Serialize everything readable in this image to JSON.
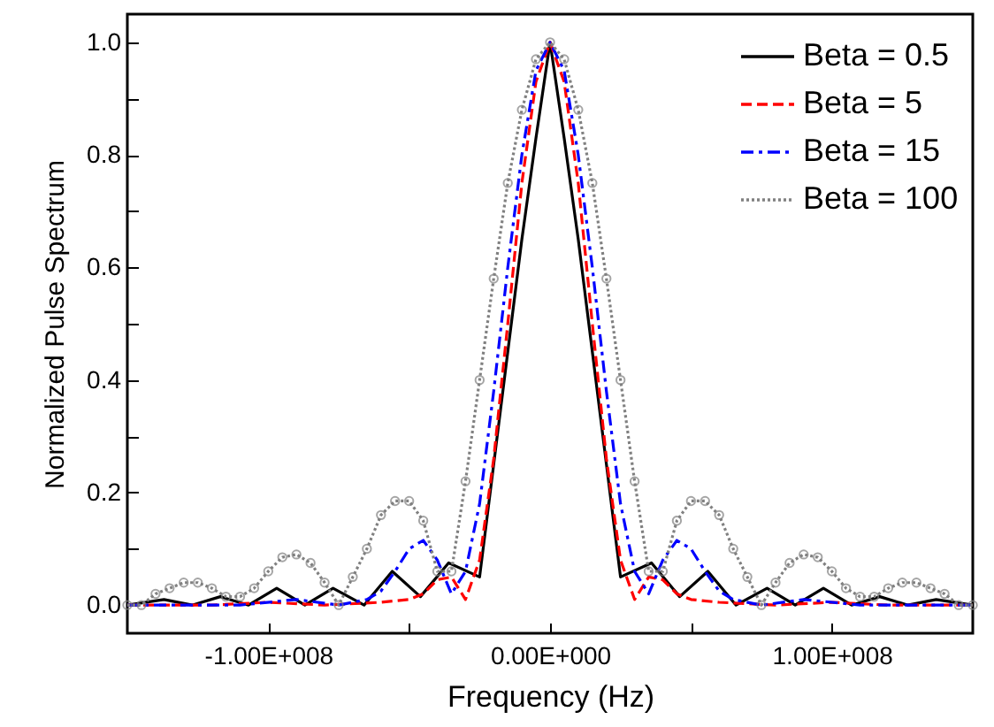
{
  "chart_data": {
    "type": "line",
    "xlabel": "Frequency (Hz)",
    "ylabel": "Normalized Pulse Spectrum",
    "xlim": [
      -150000000.0,
      150000000.0
    ],
    "ylim": [
      -0.05,
      1.05
    ],
    "xticks": [
      {
        "value": -100000000.0,
        "label": "-1.00E+008"
      },
      {
        "value": -50000000.0,
        "label": null
      },
      {
        "value": 0,
        "label": "0.00E+000"
      },
      {
        "value": 50000000.0,
        "label": null
      },
      {
        "value": 100000000.0,
        "label": "1.00E+008"
      }
    ],
    "yticks": [
      {
        "value": 0,
        "label": "0.0"
      },
      {
        "value": 0.1,
        "label": null
      },
      {
        "value": 0.2,
        "label": "0.2"
      },
      {
        "value": 0.3,
        "label": null
      },
      {
        "value": 0.4,
        "label": "0.4"
      },
      {
        "value": 0.5,
        "label": null
      },
      {
        "value": 0.6,
        "label": "0.6"
      },
      {
        "value": 0.7,
        "label": null
      },
      {
        "value": 0.8,
        "label": "0.8"
      },
      {
        "value": 0.9,
        "label": null
      },
      {
        "value": 1.0,
        "label": "1.0"
      }
    ],
    "grid": false,
    "legend": "top right",
    "series": [
      {
        "name": "Beta = 0.5",
        "color": "#000000",
        "line_style": "solid",
        "marker": "none",
        "x": [
          -150000000.0,
          -137000000.0,
          -127000000.0,
          -117000000.0,
          -107000000.0,
          -97000000.0,
          -87000000.0,
          -77000000.0,
          -66000000.0,
          -56000000.0,
          -46000000.0,
          -36000000.0,
          -25000000.0,
          -20000000.0,
          -15000000.0,
          -10000000.0,
          -5000000.0,
          0,
          5000000.0,
          10000000.0,
          15000000.0,
          20000000.0,
          25000000.0,
          36000000.0,
          46000000.0,
          56000000.0,
          66000000.0,
          77000000.0,
          87000000.0,
          97000000.0,
          107000000.0,
          117000000.0,
          127000000.0,
          137000000.0,
          150000000.0
        ],
        "values": [
          0,
          0.01,
          0,
          0.015,
          0,
          0.03,
          0,
          0.03,
          0,
          0.06,
          0.015,
          0.075,
          0.05,
          0.25,
          0.45,
          0.65,
          0.83,
          1.0,
          0.83,
          0.65,
          0.45,
          0.25,
          0.05,
          0.075,
          0.015,
          0.06,
          0,
          0.03,
          0,
          0.03,
          0,
          0.015,
          0,
          0.01,
          0
        ]
      },
      {
        "name": "Beta = 5",
        "color": "#ff0000",
        "line_style": "dashed",
        "marker": "none",
        "x": [
          -150000000.0,
          -120000000.0,
          -100000000.0,
          -80000000.0,
          -60000000.0,
          -50000000.0,
          -45000000.0,
          -40000000.0,
          -35000000.0,
          -30000000.0,
          -25000000.0,
          -20000000.0,
          -15000000.0,
          -10000000.0,
          -5000000.0,
          0,
          5000000.0,
          10000000.0,
          15000000.0,
          20000000.0,
          25000000.0,
          30000000.0,
          35000000.0,
          40000000.0,
          45000000.0,
          50000000.0,
          60000000.0,
          80000000.0,
          100000000.0,
          120000000.0,
          150000000.0
        ],
        "values": [
          0,
          0,
          0.005,
          0,
          0.005,
          0.01,
          0.02,
          0.045,
          0.05,
          0.01,
          0.08,
          0.26,
          0.5,
          0.75,
          0.93,
          1.0,
          0.93,
          0.75,
          0.5,
          0.26,
          0.08,
          0.01,
          0.05,
          0.045,
          0.02,
          0.01,
          0.005,
          0,
          0.005,
          0,
          0
        ]
      },
      {
        "name": "Beta = 15",
        "color": "#0000ff",
        "line_style": "dashdot",
        "marker": "none",
        "x": [
          -150000000.0,
          -110000000.0,
          -90000000.0,
          -75000000.0,
          -65000000.0,
          -60000000.0,
          -55000000.0,
          -50000000.0,
          -45000000.0,
          -40000000.0,
          -35000000.0,
          -30000000.0,
          -25000000.0,
          -20000000.0,
          -15000000.0,
          -10000000.0,
          -5000000.0,
          0,
          5000000.0,
          10000000.0,
          15000000.0,
          20000000.0,
          25000000.0,
          30000000.0,
          35000000.0,
          40000000.0,
          45000000.0,
          50000000.0,
          55000000.0,
          60000000.0,
          65000000.0,
          75000000.0,
          90000000.0,
          110000000.0,
          150000000.0
        ],
        "values": [
          0,
          0,
          0.01,
          0,
          0.01,
          0.025,
          0.06,
          0.1,
          0.115,
          0.08,
          0.02,
          0.06,
          0.18,
          0.38,
          0.6,
          0.8,
          0.95,
          1.0,
          0.95,
          0.8,
          0.6,
          0.38,
          0.18,
          0.06,
          0.02,
          0.08,
          0.115,
          0.1,
          0.06,
          0.025,
          0.01,
          0,
          0.01,
          0,
          0
        ]
      },
      {
        "name": "Beta = 100",
        "color": "#808080",
        "line_style": "dotted",
        "marker": "circle",
        "x": [
          -150000000.0,
          -145000000.0,
          -140000000.0,
          -135000000.0,
          -130000000.0,
          -125000000.0,
          -120000000.0,
          -115000000.0,
          -110000000.0,
          -105000000.0,
          -100000000.0,
          -95000000.0,
          -90000000.0,
          -85000000.0,
          -80000000.0,
          -75000000.0,
          -70000000.0,
          -65000000.0,
          -60000000.0,
          -55000000.0,
          -50000000.0,
          -45000000.0,
          -40000000.0,
          -35000000.0,
          -30000000.0,
          -25000000.0,
          -20000000.0,
          -15000000.0,
          -10000000.0,
          -5000000.0,
          0,
          5000000.0,
          10000000.0,
          15000000.0,
          20000000.0,
          25000000.0,
          30000000.0,
          35000000.0,
          40000000.0,
          45000000.0,
          50000000.0,
          55000000.0,
          60000000.0,
          65000000.0,
          70000000.0,
          75000000.0,
          80000000.0,
          85000000.0,
          90000000.0,
          95000000.0,
          100000000.0,
          105000000.0,
          110000000.0,
          115000000.0,
          120000000.0,
          125000000.0,
          130000000.0,
          135000000.0,
          140000000.0,
          145000000.0,
          150000000.0
        ],
        "values": [
          0.0,
          0.0,
          0.02,
          0.03,
          0.04,
          0.04,
          0.03,
          0.015,
          0.015,
          0.03,
          0.06,
          0.085,
          0.09,
          0.075,
          0.04,
          0.0,
          0.05,
          0.1,
          0.16,
          0.185,
          0.185,
          0.15,
          0.06,
          0.06,
          0.22,
          0.4,
          0.58,
          0.75,
          0.88,
          0.97,
          1.0,
          0.97,
          0.88,
          0.75,
          0.58,
          0.4,
          0.22,
          0.06,
          0.06,
          0.15,
          0.185,
          0.185,
          0.16,
          0.1,
          0.05,
          0.0,
          0.04,
          0.075,
          0.09,
          0.085,
          0.06,
          0.03,
          0.015,
          0.015,
          0.03,
          0.04,
          0.04,
          0.03,
          0.02,
          0.0,
          0.0
        ]
      }
    ]
  }
}
